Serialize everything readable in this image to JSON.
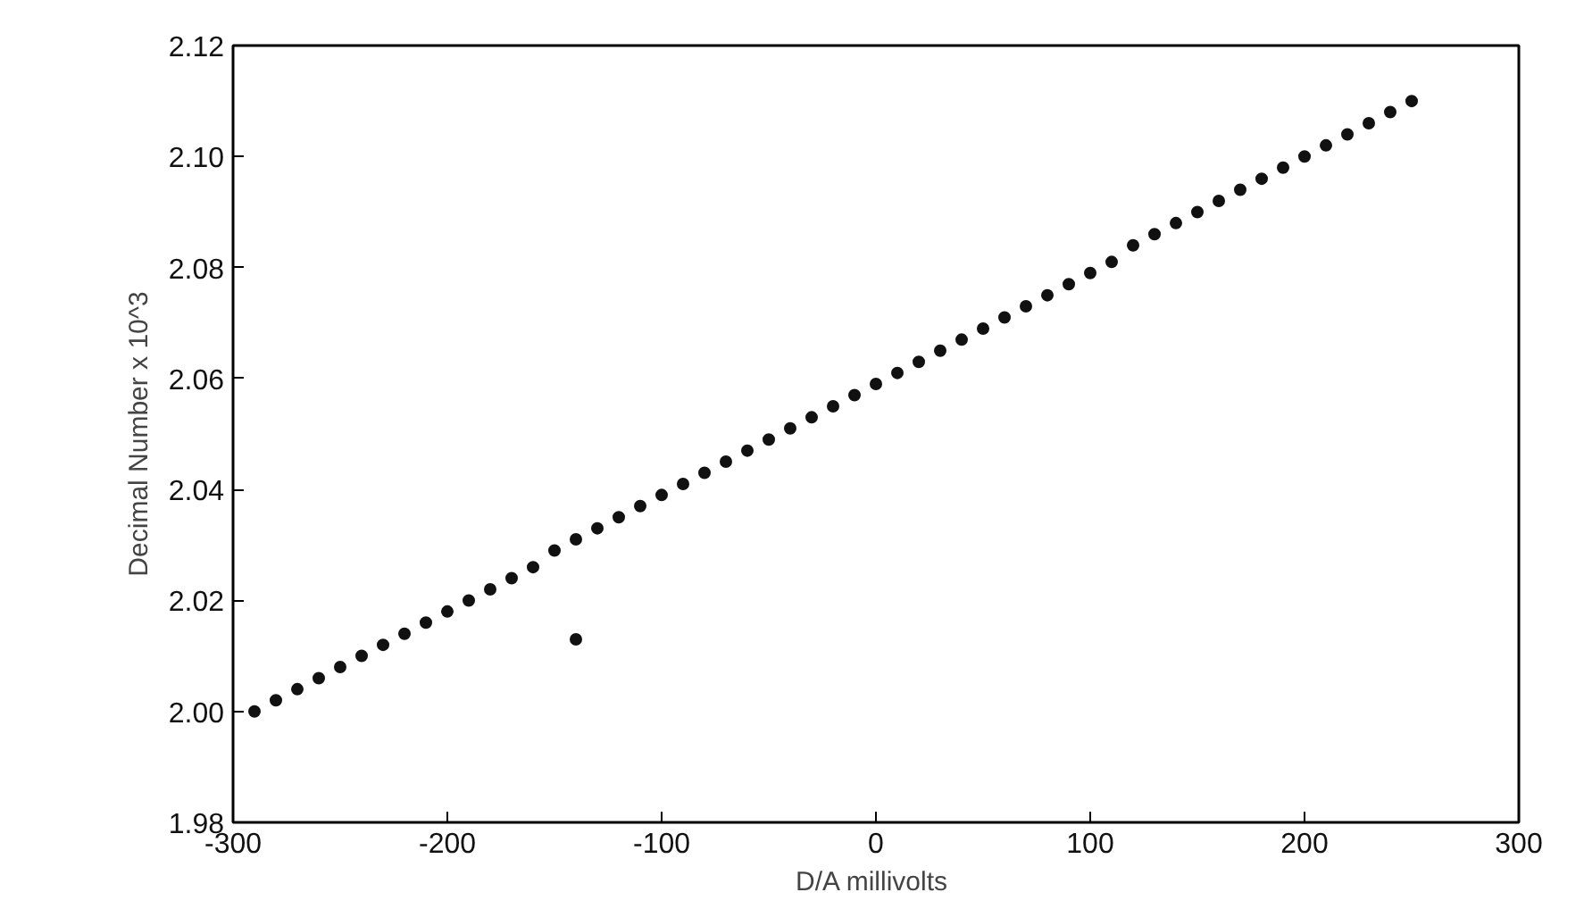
{
  "chart_data": {
    "type": "scatter",
    "xlabel": "D/A  millivolts",
    "ylabel": "Decimal Number x 10^3",
    "xlim": [
      -300,
      300
    ],
    "xticks": [
      -300,
      -200,
      -100,
      0,
      100,
      200,
      300
    ],
    "ylim": [
      1.98,
      2.12
    ],
    "yticks": [
      {
        "value": 1.98,
        "label": "1.98"
      },
      {
        "value": 2.0,
        "label": "2.00"
      },
      {
        "value": 2.02,
        "label": "2.02"
      },
      {
        "value": 2.04,
        "label": "2.04"
      },
      {
        "value": 2.06,
        "label": "2.06"
      },
      {
        "value": 2.08,
        "label": "2.08"
      },
      {
        "value": 2.1,
        "label": "2.10"
      },
      {
        "value": 2.12,
        "label": "2.12"
      }
    ],
    "grid": false,
    "marker": "circle",
    "series": [
      {
        "color": "#111111",
        "x": [
          -290,
          -280,
          -270,
          -260,
          -250,
          -240,
          -230,
          -220,
          -210,
          -200,
          -190,
          -180,
          -170,
          -160,
          -150,
          -140,
          -130,
          -120,
          -110,
          -100,
          -90,
          -80,
          -70,
          -60,
          -50,
          -40,
          -30,
          -20,
          -10,
          0,
          10,
          20,
          30,
          40,
          50,
          60,
          70,
          80,
          90,
          100,
          110,
          120,
          130,
          140,
          150,
          160,
          170,
          180,
          190,
          200,
          210,
          220,
          230,
          240,
          250,
          -140
        ],
        "values": [
          2.0,
          2.002,
          2.004,
          2.006,
          2.008,
          2.01,
          2.012,
          2.014,
          2.016,
          2.018,
          2.02,
          2.022,
          2.024,
          2.026,
          2.029,
          2.031,
          2.033,
          2.035,
          2.037,
          2.039,
          2.041,
          2.043,
          2.045,
          2.047,
          2.049,
          2.051,
          2.053,
          2.055,
          2.057,
          2.059,
          2.061,
          2.063,
          2.065,
          2.067,
          2.069,
          2.071,
          2.073,
          2.075,
          2.077,
          2.079,
          2.081,
          2.084,
          2.086,
          2.088,
          2.09,
          2.092,
          2.094,
          2.096,
          2.098,
          2.1,
          2.102,
          2.104,
          2.106,
          2.108,
          2.11,
          2.013
        ]
      }
    ]
  }
}
